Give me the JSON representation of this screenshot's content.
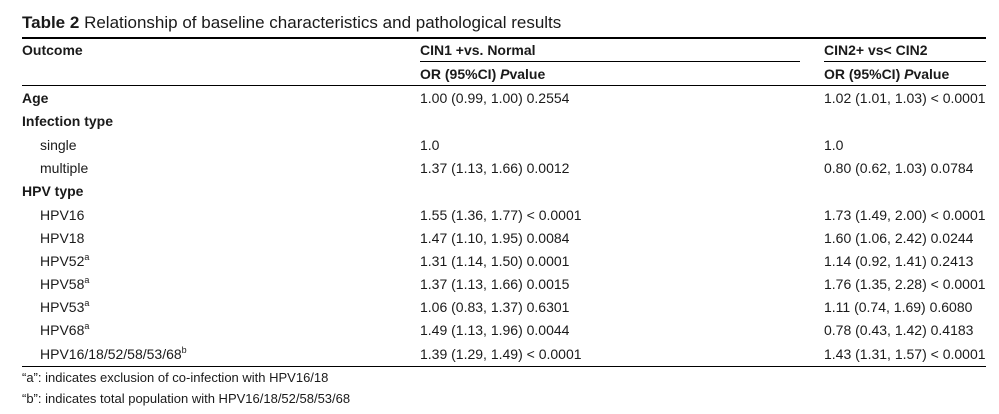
{
  "table": {
    "caption_label": "Table 2",
    "caption_text": "Relationship of baseline characteristics and pathological results",
    "header": {
      "outcome": "Outcome",
      "col1_group": "CIN1 +vs. Normal",
      "col2_group": "CIN2+ vs< CIN2",
      "col1_sub_or": "OR (95%CI) ",
      "col1_sub_p": "P",
      "col1_sub_value": "value",
      "col2_sub_or": "OR (95%CI) ",
      "col2_sub_p": "P",
      "col2_sub_value": "value"
    },
    "rows": [
      {
        "label": "Age",
        "sup": "",
        "col1": "1.00 (0.99, 1.00) 0.2554",
        "col2": "1.02 (1.01, 1.03) < 0.0001"
      },
      {
        "label": "Infection type",
        "sup": "",
        "col1": "",
        "col2": ""
      },
      {
        "label": "single",
        "sup": "",
        "col1": "1.0",
        "col2": "1.0"
      },
      {
        "label": "multiple",
        "sup": "",
        "col1": "1.37 (1.13, 1.66) 0.0012",
        "col2": "0.80 (0.62, 1.03) 0.0784"
      },
      {
        "label": "HPV type",
        "sup": "",
        "col1": "",
        "col2": ""
      },
      {
        "label": "HPV16",
        "sup": "",
        "col1": "1.55 (1.36, 1.77) < 0.0001",
        "col2": "1.73 (1.49, 2.00) < 0.0001"
      },
      {
        "label": "HPV18",
        "sup": "",
        "col1": "1.47 (1.10, 1.95) 0.0084",
        "col2": "1.60 (1.06, 2.42) 0.0244"
      },
      {
        "label": "HPV52",
        "sup": "a",
        "col1": "1.31 (1.14, 1.50) 0.0001",
        "col2": "1.14 (0.92, 1.41) 0.2413"
      },
      {
        "label": "HPV58",
        "sup": "a",
        "col1": "1.37 (1.13, 1.66) 0.0015",
        "col2": "1.76 (1.35, 2.28) < 0.0001"
      },
      {
        "label": "HPV53",
        "sup": "a",
        "col1": "1.06 (0.83, 1.37) 0.6301",
        "col2": "1.11 (0.74, 1.69) 0.6080"
      },
      {
        "label": "HPV68",
        "sup": "a",
        "col1": "1.49 (1.13, 1.96) 0.0044",
        "col2": "0.78 (0.43, 1.42) 0.4183"
      },
      {
        "label": "HPV16/18/52/58/53/68",
        "sup": "b",
        "col1": "1.39 (1.29, 1.49) < 0.0001",
        "col2": "1.43 (1.31, 1.57) < 0.0001"
      }
    ],
    "footnotes": [
      "“a”: indicates exclusion of co-infection with HPV16/18",
      "“b”: indicates total population with HPV16/18/52/58/53/68"
    ]
  }
}
